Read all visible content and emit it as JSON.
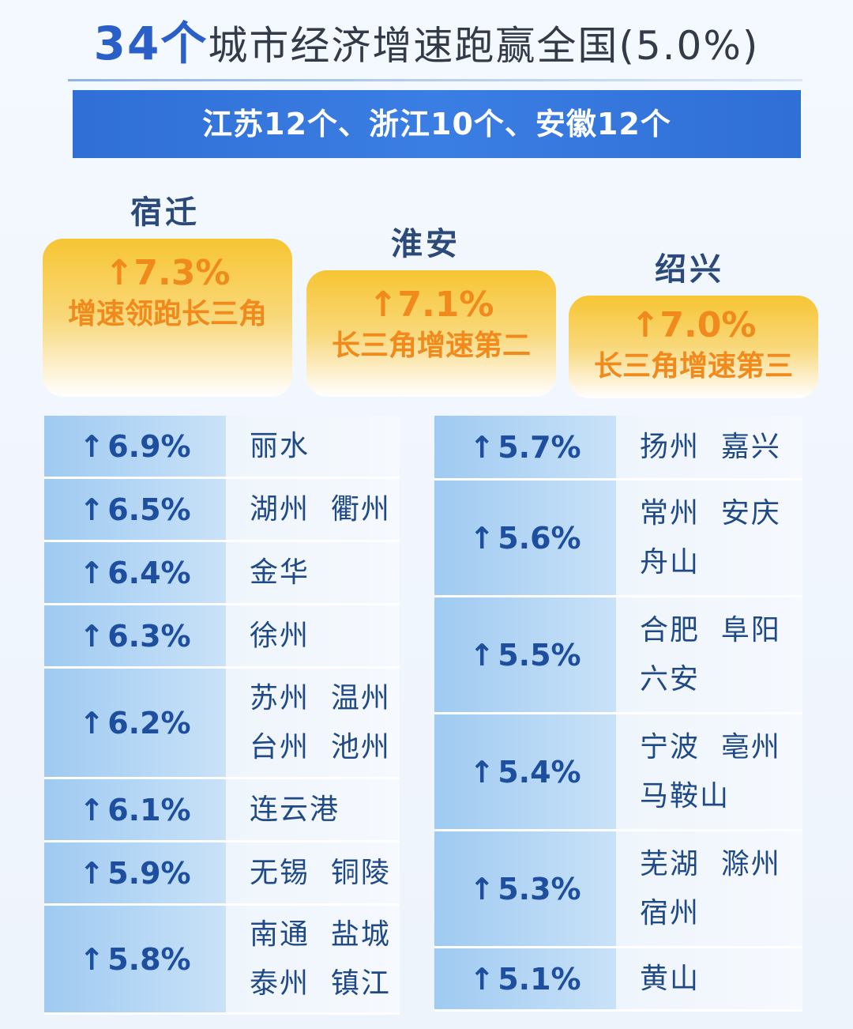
{
  "title": {
    "num": "34个",
    "rest": "城市经济增速跑赢全国(5.0%)"
  },
  "banner": "江苏12个、浙江10个、安徽12个",
  "top3": [
    {
      "city": "宿迁",
      "rate": "↑7.3%",
      "desc": "增速领跑长三角"
    },
    {
      "city": "淮安",
      "rate": "↑7.1%",
      "desc": "长三角增速第二"
    },
    {
      "city": "绍兴",
      "rate": "↑7.0%",
      "desc": "长三角增速第三"
    }
  ],
  "left_rows": [
    {
      "rate": "6.9%",
      "line1": "丽水",
      "line2": ""
    },
    {
      "rate": "6.5%",
      "line1": "湖州  衢州",
      "line2": ""
    },
    {
      "rate": "6.4%",
      "line1": "金华",
      "line2": ""
    },
    {
      "rate": "6.3%",
      "line1": "徐州",
      "line2": ""
    },
    {
      "rate": "6.2%",
      "line1": "苏州  温州",
      "line2": "台州  池州"
    },
    {
      "rate": "6.1%",
      "line1": "连云港",
      "line2": ""
    },
    {
      "rate": "5.9%",
      "line1": "无锡  铜陵",
      "line2": ""
    },
    {
      "rate": "5.8%",
      "line1": "南通  盐城",
      "line2": "泰州  镇江"
    }
  ],
  "right_rows": [
    {
      "rate": "5.7%",
      "line1": "扬州  嘉兴",
      "line2": ""
    },
    {
      "rate": "5.6%",
      "line1": "常州  安庆",
      "line2": "舟山"
    },
    {
      "rate": "5.5%",
      "line1": "合肥  阜阳",
      "line2": "六安"
    },
    {
      "rate": "5.4%",
      "line1": "宁波  亳州",
      "line2": "马鞍山"
    },
    {
      "rate": "5.3%",
      "line1": "芜湖  滁州",
      "line2": "宿州"
    },
    {
      "rate": "5.1%",
      "line1": "黄山",
      "line2": ""
    }
  ],
  "arrow_glyph": "↑",
  "colors": {
    "accent": "#2f6fd6",
    "gold": "#f7c533",
    "orange_text": "#f08a1c"
  }
}
